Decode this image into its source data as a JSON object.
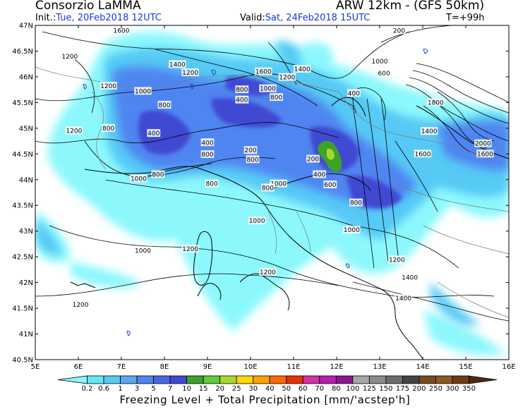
{
  "header": {
    "org": "Consorzio LaMMA",
    "model": "ARW 12km - (GFS 50km)",
    "init_label": "Init.:",
    "init_value": "Tue, 20Feb2018 12UTC",
    "valid_label": "Valid:",
    "valid_value": "Sat, 24Feb2018 15UTC",
    "step": "T=+99h"
  },
  "map": {
    "lat_labels": [
      "47N",
      "46.5N",
      "46N",
      "45.5N",
      "45N",
      "44.5N",
      "44N",
      "43.5N",
      "43N",
      "42.5N",
      "42N",
      "41.5N",
      "41N",
      "40.5N"
    ],
    "lon_labels": [
      "5E",
      "6E",
      "7E",
      "8E",
      "9E",
      "10E",
      "11E",
      "12E",
      "13E",
      "14E",
      "15E",
      "16E"
    ],
    "contour_labels": [
      {
        "text": "1200",
        "lon": 5.8,
        "lat": 46.4
      },
      {
        "text": "1600",
        "lon": 7.0,
        "lat": 46.9
      },
      {
        "text": "1400",
        "lon": 8.3,
        "lat": 46.24
      },
      {
        "text": "1200",
        "lon": 8.6,
        "lat": 46.08
      },
      {
        "text": "1200",
        "lon": 6.7,
        "lat": 45.82
      },
      {
        "text": "1000",
        "lon": 7.5,
        "lat": 45.72
      },
      {
        "text": "800",
        "lon": 8.0,
        "lat": 45.45
      },
      {
        "text": "1600",
        "lon": 10.3,
        "lat": 46.1
      },
      {
        "text": "1400",
        "lon": 11.2,
        "lat": 46.15
      },
      {
        "text": "1200",
        "lon": 10.85,
        "lat": 45.99
      },
      {
        "text": "800",
        "lon": 9.8,
        "lat": 45.75
      },
      {
        "text": "400",
        "lon": 9.8,
        "lat": 45.55
      },
      {
        "text": "1000",
        "lon": 10.4,
        "lat": 45.77
      },
      {
        "text": "800",
        "lon": 10.6,
        "lat": 45.6
      },
      {
        "text": "200",
        "lon": 13.45,
        "lat": 46.9
      },
      {
        "text": "1000",
        "lon": 13.0,
        "lat": 46.3
      },
      {
        "text": "600",
        "lon": 13.1,
        "lat": 46.07
      },
      {
        "text": "400",
        "lon": 12.4,
        "lat": 45.68
      },
      {
        "text": "1800",
        "lon": 14.3,
        "lat": 45.5
      },
      {
        "text": "1400",
        "lon": 14.15,
        "lat": 44.94
      },
      {
        "text": "2000",
        "lon": 15.4,
        "lat": 44.7
      },
      {
        "text": "1600",
        "lon": 15.45,
        "lat": 44.5
      },
      {
        "text": "1600",
        "lon": 14.0,
        "lat": 44.5
      },
      {
        "text": "1200",
        "lon": 5.9,
        "lat": 44.95
      },
      {
        "text": "800",
        "lon": 6.7,
        "lat": 45.0
      },
      {
        "text": "400",
        "lon": 7.75,
        "lat": 44.9
      },
      {
        "text": "400",
        "lon": 9.0,
        "lat": 44.72
      },
      {
        "text": "800",
        "lon": 9.0,
        "lat": 44.49
      },
      {
        "text": "200",
        "lon": 10.0,
        "lat": 44.57
      },
      {
        "text": "800",
        "lon": 10.05,
        "lat": 44.39
      },
      {
        "text": "200",
        "lon": 11.45,
        "lat": 44.4
      },
      {
        "text": "1000",
        "lon": 7.4,
        "lat": 44.02
      },
      {
        "text": "800",
        "lon": 7.85,
        "lat": 44.1
      },
      {
        "text": "800",
        "lon": 9.1,
        "lat": 43.92
      },
      {
        "text": "1000",
        "lon": 10.65,
        "lat": 43.92
      },
      {
        "text": "800",
        "lon": 10.4,
        "lat": 43.84
      },
      {
        "text": "400",
        "lon": 11.6,
        "lat": 44.1
      },
      {
        "text": "600",
        "lon": 11.85,
        "lat": 43.9
      },
      {
        "text": "800",
        "lon": 12.45,
        "lat": 43.55
      },
      {
        "text": "1000",
        "lon": 10.15,
        "lat": 43.2
      },
      {
        "text": "1000",
        "lon": 12.35,
        "lat": 43.02
      },
      {
        "text": "1000",
        "lon": 7.5,
        "lat": 42.62
      },
      {
        "text": "1200",
        "lon": 8.6,
        "lat": 42.65
      },
      {
        "text": "1200",
        "lon": 10.4,
        "lat": 42.2
      },
      {
        "text": "1200",
        "lon": 6.05,
        "lat": 41.57
      },
      {
        "text": "1200",
        "lon": 13.4,
        "lat": 42.44
      },
      {
        "text": "1400",
        "lon": 13.7,
        "lat": 42.1
      },
      {
        "text": "1400",
        "lon": 13.55,
        "lat": 41.69
      }
    ]
  },
  "colorbar": {
    "ticks": [
      "0.2",
      "0.6",
      "1",
      "3",
      "5",
      "7",
      "10",
      "15",
      "20",
      "25",
      "30",
      "40",
      "50",
      "60",
      "70",
      "80",
      "100",
      "125",
      "150",
      "175",
      "200",
      "250",
      "300",
      "350"
    ],
    "colors": [
      "#8cf8fc",
      "#62e9f7",
      "#57c9f5",
      "#5aa7f2",
      "#4f85f0",
      "#4766e6",
      "#4148d2",
      "#3da12a",
      "#5ccd37",
      "#a5d92a",
      "#fcd806",
      "#fca102",
      "#fb6b02",
      "#e53402",
      "#d4309f",
      "#b81cb0",
      "#8c1392",
      "#a6a6a6",
      "#8c8c8c",
      "#6c6c6c",
      "#444444",
      "#764d21",
      "#8a5a23",
      "#6d3d16",
      "#4c2a12"
    ],
    "title": "Freezing Level + Total Precipitation [mm/'acstep'h]"
  },
  "colors": {
    "header_value": "#1a3ad6",
    "frame": "#000000"
  }
}
